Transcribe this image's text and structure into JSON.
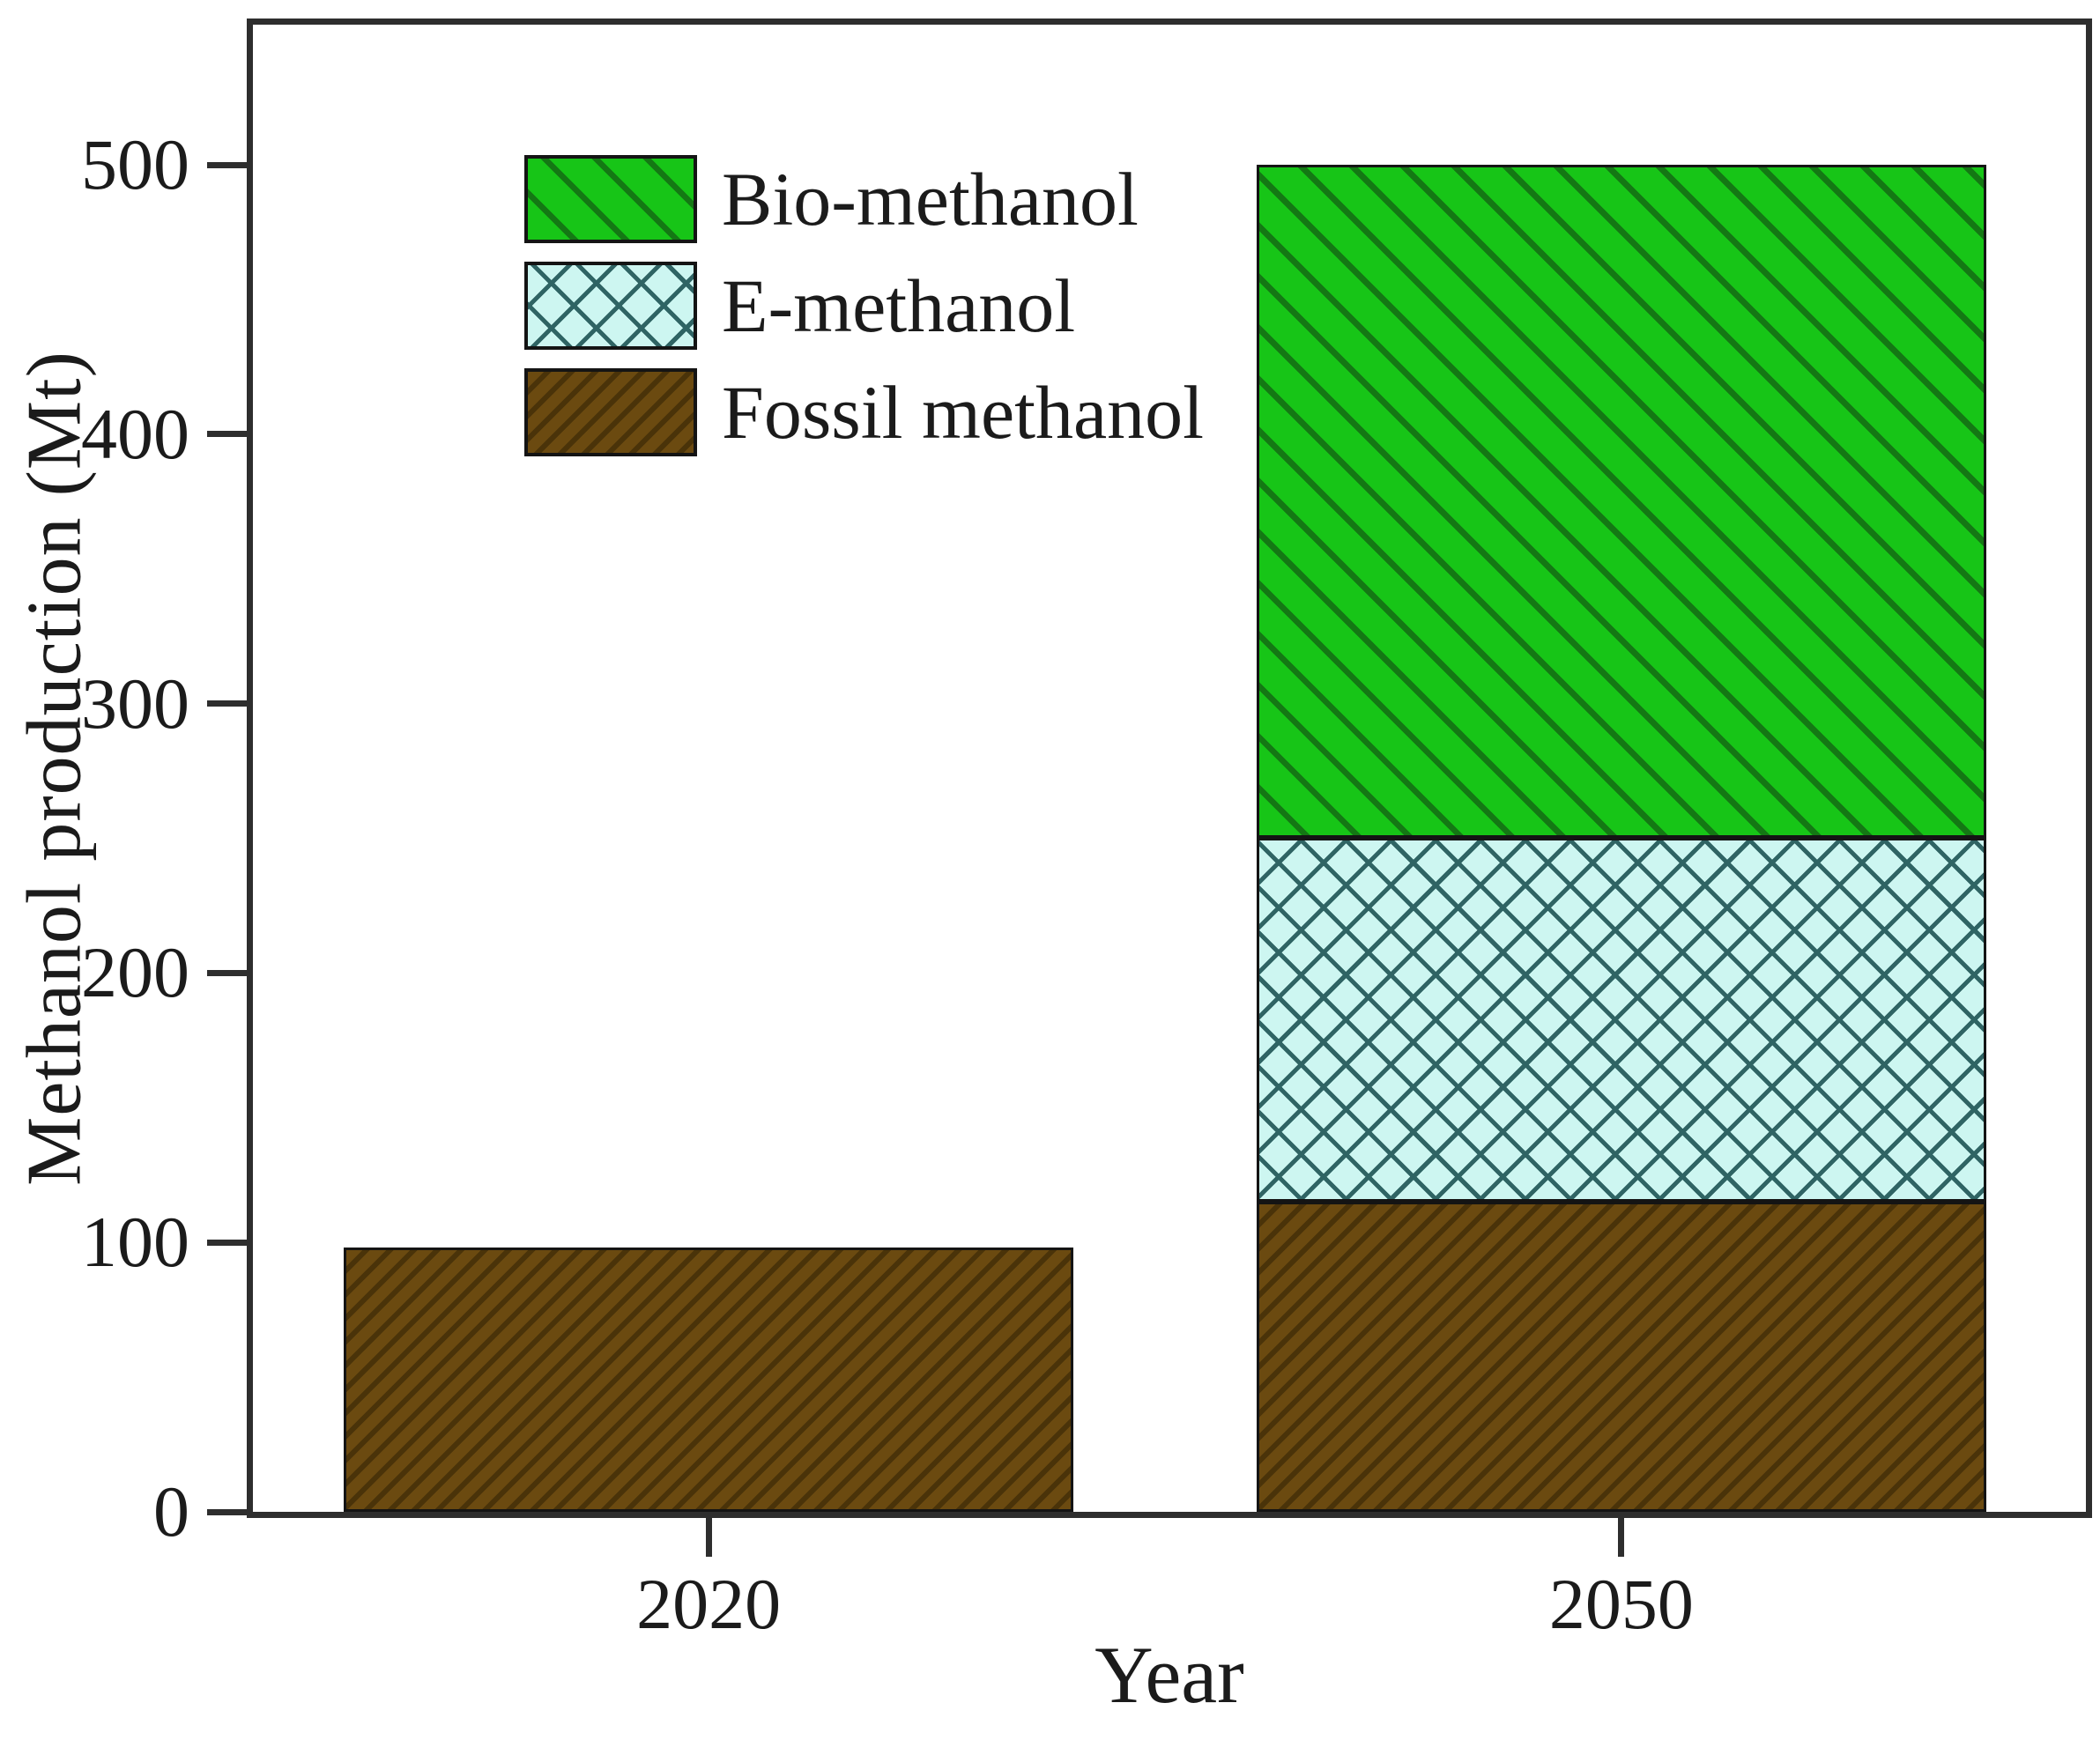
{
  "chart_data": {
    "type": "bar",
    "stacked": true,
    "xlabel": "Year",
    "ylabel": "Methanol production (Mt)",
    "categories": [
      "2020",
      "2050"
    ],
    "series": [
      {
        "name": "Fossil methanol",
        "values": [
          98,
          115
        ],
        "fill": "#6b4a10",
        "hatch": "diagonal-forward",
        "hatch_color": "#4a3309"
      },
      {
        "name": "E-methanol",
        "values": [
          0,
          135
        ],
        "fill": "#cdf6f1",
        "hatch": "crosshatch",
        "hatch_color": "#2f6464"
      },
      {
        "name": "Bio-methanol",
        "values": [
          0,
          250
        ],
        "fill": "#17c517",
        "hatch": "diagonal-back",
        "hatch_color": "#147814"
      }
    ],
    "y_ticks": [
      0,
      100,
      200,
      300,
      400,
      500
    ],
    "ylim": [
      0,
      552
    ],
    "grid": false,
    "legend_position": "upper-left",
    "legend_order": [
      "Bio-methanol",
      "E-methanol",
      "Fossil methanol"
    ],
    "axis_color": "#2e2e2e",
    "text_color": "#1b1b1b"
  }
}
